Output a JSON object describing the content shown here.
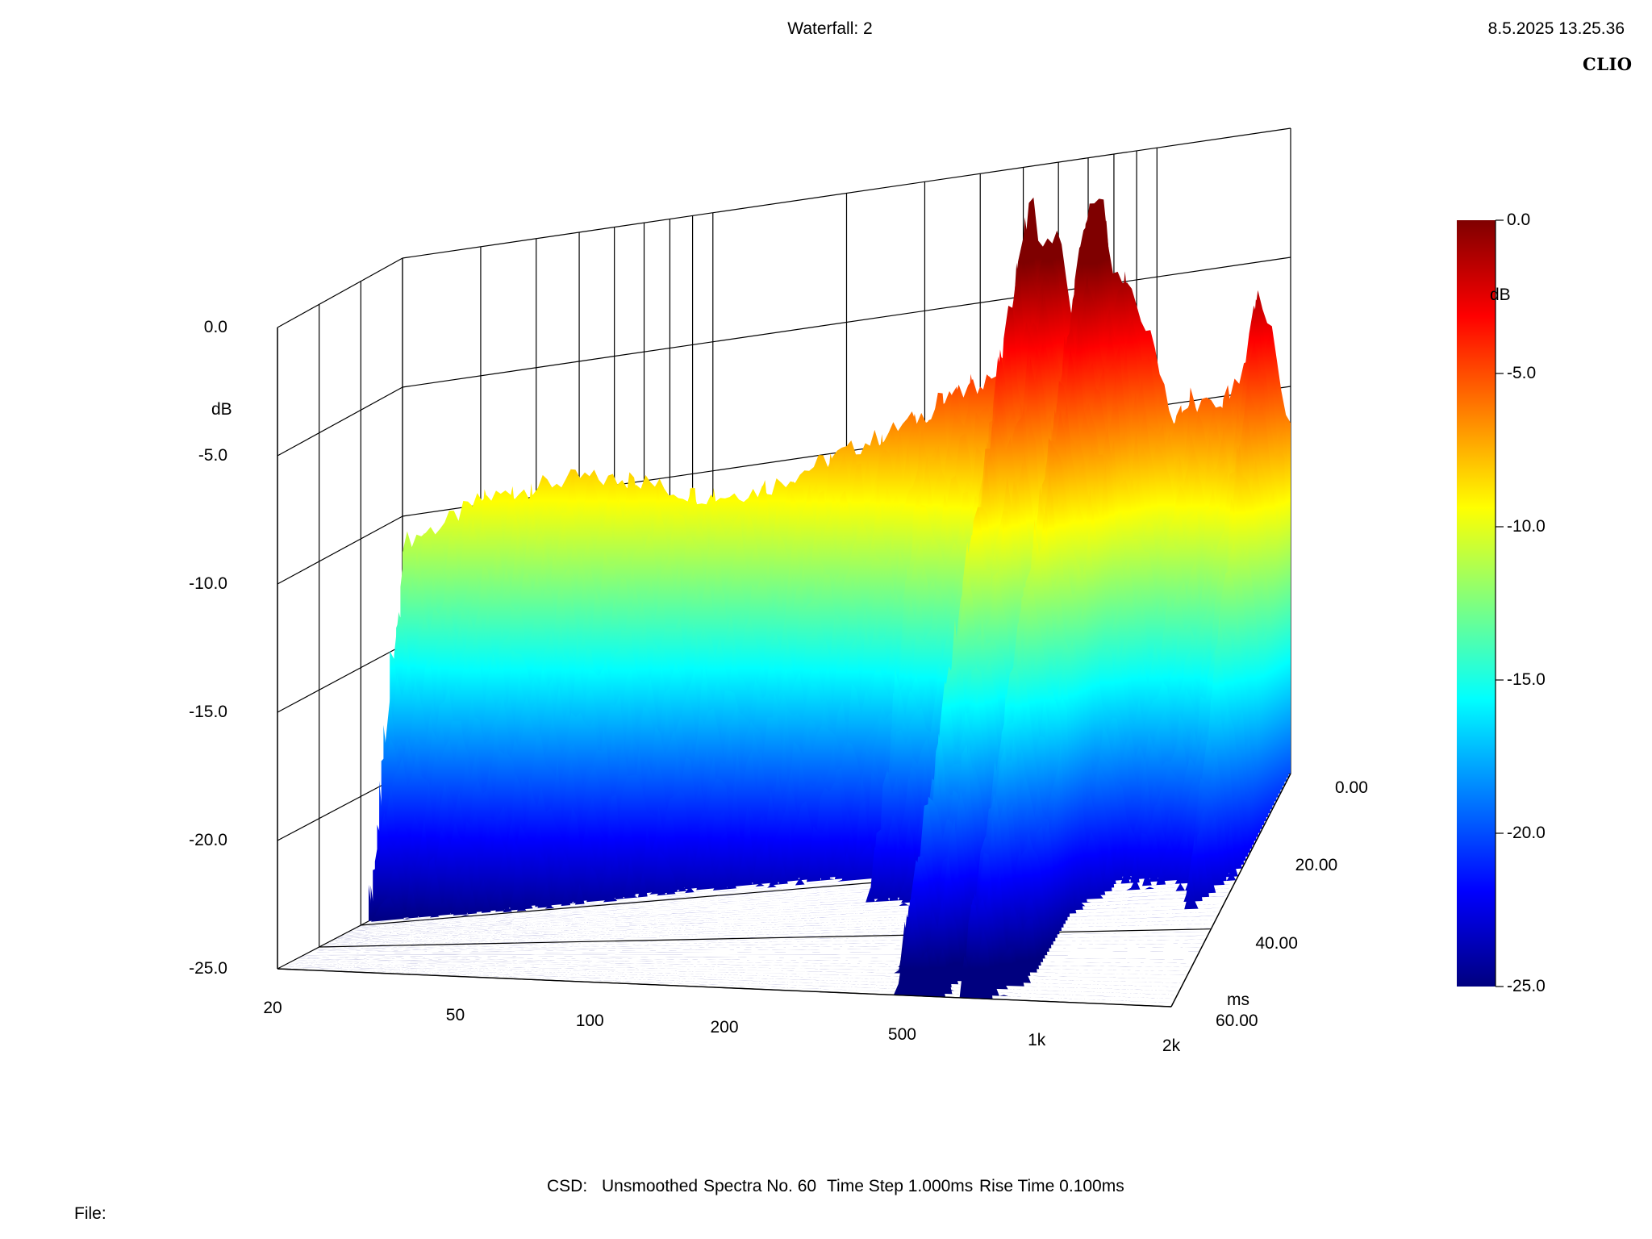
{
  "header": {
    "title": "Waterfall: 2",
    "timestamp": "8.5.2025 13.25.36",
    "brand": "CLIO"
  },
  "footer": {
    "csd_label": "CSD:",
    "smoothing": "Unsmoothed",
    "spectra": "Spectra No. 60",
    "time_step": "Time Step 1.000ms",
    "rise_time": "Rise Time 0.100ms",
    "file_label": "File:"
  },
  "colors": {
    "gridline": "#000000",
    "colormap": [
      "#00007f",
      "#0000ff",
      "#007fff",
      "#00ffff",
      "#7fff7f",
      "#ffff00",
      "#ff7f00",
      "#ff0000",
      "#7f0000"
    ]
  },
  "chart_data": {
    "type": "waterfall",
    "title": "Waterfall: 2",
    "zlabel": "dB",
    "zlim": [
      -25,
      0
    ],
    "z_ticks": [
      "0.0",
      "-5.0",
      "-10.0",
      "-15.0",
      "-20.0",
      "-25.0"
    ],
    "xlabel": "",
    "x_scale": "log",
    "xlim": [
      20,
      2000
    ],
    "x_ticks": [
      "20",
      "50",
      "100",
      "200",
      "500",
      "1k",
      "2k"
    ],
    "ylabel": "ms",
    "ylim": [
      0,
      60
    ],
    "y_ticks": [
      "0.00",
      "20.00",
      "40.00",
      "60.00"
    ],
    "colorbar": {
      "label": "dB",
      "ticks": [
        "0.0",
        "-5.0",
        "-10.0",
        "-15.0",
        "-20.0",
        "-25.0"
      ]
    },
    "spectra_count": 60,
    "time_step_ms": 1.0,
    "profile_at_0ms": {
      "freq_hz": [
        20,
        25,
        30,
        40,
        50,
        60,
        70,
        80,
        100,
        130,
        160,
        200,
        250,
        300,
        350,
        400,
        450,
        480,
        520,
        550,
        600,
        650,
        700,
        750,
        800,
        900,
        1000,
        1100,
        1200,
        1400,
        1600,
        1700,
        1800,
        1900,
        2000
      ],
      "db": [
        -11.0,
        -10.5,
        -9.8,
        -9.6,
        -9.5,
        -9.8,
        -10.0,
        -10.5,
        -11.0,
        -11.0,
        -10.5,
        -10.0,
        -9.5,
        -9.0,
        -8.5,
        -8.2,
        -7.5,
        -6.0,
        -0.8,
        -3.5,
        -2.5,
        -7.0,
        -2.2,
        -1.5,
        -4.5,
        -6.0,
        -8.0,
        -11.0,
        -10.0,
        -10.5,
        -9.0,
        -6.0,
        -7.5,
        -10.0,
        -11.5
      ]
    },
    "decay": [
      {
        "freq_range": [
          20,
          300
        ],
        "db_per_ms": 0.85
      },
      {
        "freq_range": [
          300,
          450
        ],
        "db_per_ms": 0.6
      },
      {
        "freq_range": [
          450,
          900
        ],
        "db_per_ms": 0.35
      },
      {
        "freq_range": [
          900,
          2000
        ],
        "db_per_ms": 0.55
      }
    ]
  }
}
